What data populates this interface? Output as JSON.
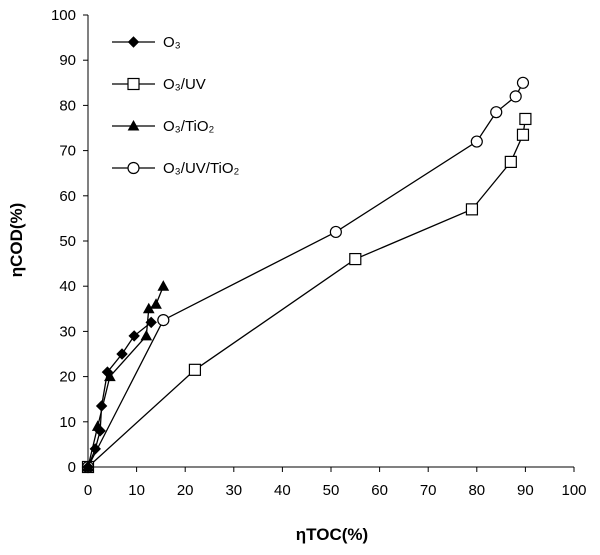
{
  "chart_data": {
    "type": "line",
    "xlabel": "ηTOC(%)",
    "ylabel": "ηCOD(%)",
    "xlim": [
      0,
      100
    ],
    "ylim": [
      0,
      100
    ],
    "xticks": [
      0,
      10,
      20,
      30,
      40,
      50,
      60,
      70,
      80,
      90,
      100
    ],
    "yticks": [
      0,
      10,
      20,
      30,
      40,
      50,
      60,
      70,
      80,
      90,
      100
    ],
    "grid": false,
    "legend_position": "top-left",
    "series": [
      {
        "name": "O₃",
        "marker": "diamond",
        "points": [
          [
            0,
            0
          ],
          [
            1.5,
            4
          ],
          [
            2.5,
            8
          ],
          [
            2.8,
            13.5
          ],
          [
            4,
            21
          ],
          [
            7,
            25
          ],
          [
            9.5,
            29
          ],
          [
            13,
            32
          ]
        ]
      },
      {
        "name": "O₃/UV",
        "marker": "square",
        "points": [
          [
            0,
            0
          ],
          [
            22,
            21.5
          ],
          [
            55,
            46
          ],
          [
            79,
            57
          ],
          [
            87,
            67.5
          ],
          [
            89.5,
            73.5
          ],
          [
            90,
            77
          ]
        ]
      },
      {
        "name": "O₃/TiO₂",
        "marker": "triangle",
        "points": [
          [
            0,
            0
          ],
          [
            2,
            9
          ],
          [
            4.5,
            20
          ],
          [
            12,
            29
          ],
          [
            12.5,
            35
          ],
          [
            14,
            36
          ],
          [
            15.5,
            40
          ]
        ]
      },
      {
        "name": "O₃/UV/TiO₂",
        "marker": "circle",
        "points": [
          [
            0,
            0
          ],
          [
            15.5,
            32.5
          ],
          [
            51,
            52
          ],
          [
            80,
            72
          ],
          [
            84,
            78.5
          ],
          [
            88,
            82
          ],
          [
            89.5,
            85
          ]
        ]
      }
    ]
  }
}
